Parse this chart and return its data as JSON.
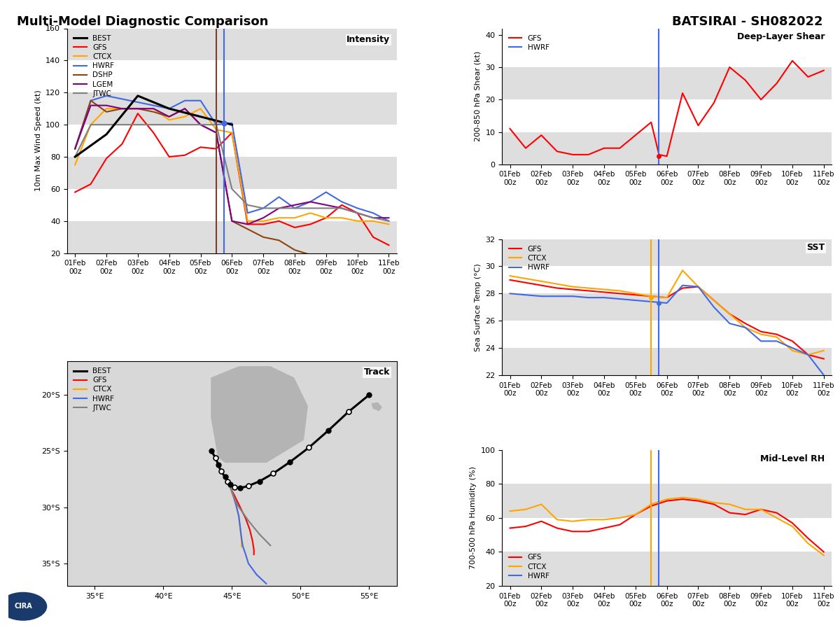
{
  "title_left": "Multi-Model Diagnostic Comparison",
  "title_right": "BATSIRAI - SH082022",
  "date_labels": [
    "01Feb\n00z",
    "02Feb\n00z",
    "03Feb\n00z",
    "04Feb\n00z",
    "05Feb\n00z",
    "06Feb\n00z",
    "07Feb\n00z",
    "08Feb\n00z",
    "09Feb\n00z",
    "10Feb\n00z",
    "11Feb\n00z"
  ],
  "intensity": {
    "ylabel": "10m Max Wind Speed (kt)",
    "ylim": [
      20,
      160
    ],
    "yticks": [
      20,
      40,
      60,
      80,
      100,
      120,
      140,
      160
    ],
    "vline_brown": 5.5,
    "vline_blue": 5.75,
    "BEST_x": [
      1,
      2,
      3,
      4,
      5,
      6
    ],
    "BEST_y": [
      80,
      94,
      118,
      110,
      105,
      100
    ],
    "GFS_x": [
      1.0,
      1.5,
      2.0,
      2.5,
      3.0,
      3.5,
      4.0,
      4.5,
      5.0,
      5.5,
      6.0,
      6.5,
      7.0,
      7.5,
      8.0,
      8.5,
      9.0,
      9.5,
      10.0,
      10.5,
      11.0
    ],
    "GFS_y": [
      58,
      63,
      79,
      88,
      107,
      95,
      80,
      81,
      86,
      85,
      95,
      38,
      38,
      40,
      36,
      38,
      42,
      50,
      45,
      30,
      25
    ],
    "CTCX_x": [
      1.0,
      1.5,
      2.0,
      2.5,
      3.0,
      3.5,
      4.0,
      4.5,
      5.0,
      5.5,
      6.0,
      6.5,
      7.0,
      7.5,
      8.0,
      8.5,
      9.0,
      9.5,
      10.0,
      10.5,
      11.0
    ],
    "CTCX_y": [
      75,
      100,
      110,
      110,
      110,
      110,
      103,
      105,
      110,
      97,
      95,
      40,
      40,
      42,
      42,
      45,
      42,
      42,
      40,
      40,
      38
    ],
    "HWRF_x": [
      1.0,
      1.5,
      2.0,
      2.5,
      3.0,
      3.5,
      4.0,
      4.5,
      5.0,
      5.5,
      6.0,
      6.5,
      7.0,
      7.5,
      8.0,
      8.5,
      9.0,
      9.5,
      10.0,
      10.5,
      11.0
    ],
    "HWRF_y": [
      85,
      115,
      118,
      116,
      114,
      112,
      110,
      115,
      115,
      100,
      101,
      45,
      48,
      55,
      48,
      52,
      58,
      52,
      48,
      45,
      40
    ],
    "DSHP_x": [
      1.0,
      1.5,
      2.0,
      2.5,
      3.0,
      3.5,
      4.0,
      4.5,
      5.0,
      5.5,
      6.0,
      6.5,
      7.0,
      7.5,
      8.0,
      8.5
    ],
    "DSHP_y": [
      85,
      115,
      108,
      110,
      110,
      108,
      105,
      110,
      100,
      95,
      40,
      35,
      30,
      28,
      22,
      19
    ],
    "LGEM_x": [
      1.0,
      1.5,
      2.0,
      2.5,
      3.0,
      3.5,
      4.0,
      4.5,
      5.0,
      5.5,
      6.0,
      6.5,
      7.0,
      7.5,
      8.0,
      8.5,
      9.0,
      9.5,
      10.0,
      10.5,
      11.0
    ],
    "LGEM_y": [
      85,
      112,
      112,
      110,
      110,
      110,
      105,
      110,
      100,
      95,
      40,
      38,
      42,
      48,
      50,
      52,
      50,
      48,
      45,
      42,
      42
    ],
    "JTWC_x": [
      1.0,
      1.5,
      2.0,
      2.5,
      3.0,
      3.5,
      4.0,
      4.5,
      5.0,
      5.5,
      6.0,
      6.5,
      7.0,
      7.5,
      8.0,
      8.5,
      9.0,
      9.5,
      10.0,
      10.5,
      11.0
    ],
    "JTWC_y": [
      80,
      100,
      100,
      100,
      100,
      100,
      100,
      100,
      100,
      100,
      60,
      50,
      48,
      48,
      48,
      48,
      48,
      48,
      45,
      42,
      40
    ]
  },
  "shear": {
    "ylabel": "200-850 hPa Shear (kt)",
    "ylim": [
      0,
      42
    ],
    "yticks": [
      0,
      10,
      20,
      30,
      40
    ],
    "vline_blue": 5.75,
    "GFS_x": [
      1.0,
      1.5,
      2.0,
      2.5,
      3.0,
      3.5,
      4.0,
      4.5,
      5.0,
      5.5,
      5.75,
      6.0,
      6.5,
      7.0,
      7.5,
      8.0,
      8.5,
      9.0,
      9.5,
      10.0,
      10.5,
      11.0
    ],
    "GFS_y": [
      11,
      5,
      9,
      4,
      3,
      3,
      5,
      5,
      9,
      13,
      3,
      2.5,
      22,
      12,
      19,
      30,
      26,
      20,
      25,
      32,
      27,
      29
    ]
  },
  "sst": {
    "ylabel": "Sea Surface Temp (°C)",
    "ylim": [
      22,
      32
    ],
    "yticks": [
      22,
      24,
      26,
      28,
      30,
      32
    ],
    "vline_ctcx": 5.5,
    "vline_hwrf": 5.75,
    "GFS_x": [
      1.0,
      1.5,
      2.0,
      2.5,
      3.0,
      3.5,
      4.0,
      4.5,
      5.0,
      5.5,
      6.0,
      6.5,
      7.0,
      7.5,
      8.0,
      8.5,
      9.0,
      9.5,
      10.0,
      10.5,
      11.0
    ],
    "GFS_y": [
      29.0,
      28.8,
      28.6,
      28.4,
      28.3,
      28.2,
      28.1,
      28.0,
      27.9,
      27.8,
      27.7,
      28.4,
      28.5,
      27.5,
      26.5,
      25.8,
      25.2,
      25.0,
      24.5,
      23.5,
      23.2
    ],
    "CTCX_x": [
      1.0,
      1.5,
      2.0,
      2.5,
      3.0,
      3.5,
      4.0,
      4.5,
      5.0,
      5.5,
      6.0,
      6.5,
      7.0,
      7.5,
      8.0,
      8.5,
      9.0,
      9.5,
      10.0,
      10.5,
      11.0
    ],
    "CTCX_y": [
      29.3,
      29.1,
      28.9,
      28.7,
      28.5,
      28.4,
      28.3,
      28.2,
      28.0,
      27.8,
      27.7,
      29.7,
      28.5,
      27.5,
      26.5,
      25.5,
      25.0,
      24.8,
      23.8,
      23.5,
      23.8
    ],
    "HWRF_x": [
      1.0,
      1.5,
      2.0,
      2.5,
      3.0,
      3.5,
      4.0,
      4.5,
      5.0,
      5.5,
      6.0,
      6.5,
      7.0,
      7.5,
      8.0,
      8.5,
      9.0,
      9.5,
      10.0,
      10.5,
      11.0
    ],
    "HWRF_y": [
      28.0,
      27.9,
      27.8,
      27.8,
      27.8,
      27.7,
      27.7,
      27.6,
      27.5,
      27.4,
      27.3,
      28.6,
      28.5,
      27.0,
      25.8,
      25.5,
      24.5,
      24.5,
      24.0,
      23.5,
      22.0
    ]
  },
  "rh": {
    "ylabel": "700-500 hPa Humidity (%)",
    "ylim": [
      20,
      100
    ],
    "yticks": [
      20,
      40,
      60,
      80,
      100
    ],
    "vline_ctcx": 5.5,
    "vline_hwrf": 5.75,
    "GFS_x": [
      1.0,
      1.5,
      2.0,
      2.5,
      3.0,
      3.5,
      4.0,
      4.5,
      5.0,
      5.5,
      6.0,
      6.5,
      7.0,
      7.5,
      8.0,
      8.5,
      9.0,
      9.5,
      10.0,
      10.5,
      11.0
    ],
    "GFS_y": [
      54,
      55,
      58,
      54,
      52,
      52,
      54,
      56,
      62,
      67,
      70,
      71,
      70,
      68,
      63,
      62,
      65,
      63,
      57,
      48,
      40
    ],
    "CTCX_x": [
      1.0,
      1.5,
      2.0,
      2.5,
      3.0,
      3.5,
      4.0,
      4.5,
      5.0,
      5.5,
      6.0,
      6.5,
      7.0,
      7.5,
      8.0,
      8.5,
      9.0,
      9.5,
      10.0,
      10.5,
      11.0
    ],
    "CTCX_y": [
      64,
      65,
      68,
      59,
      58,
      59,
      59,
      60,
      62,
      68,
      71,
      72,
      71,
      69,
      68,
      65,
      65,
      60,
      55,
      45,
      38
    ]
  },
  "track": {
    "xlim": [
      33,
      57
    ],
    "ylim": [
      -37,
      -17
    ],
    "xticks": [
      35,
      40,
      45,
      50,
      55
    ],
    "yticks": [
      -20,
      -25,
      -30,
      -35
    ],
    "ytick_labels": [
      "20°S",
      "25°S",
      "30°S",
      "35°S"
    ],
    "BEST_lon": [
      43.5,
      43.8,
      44.0,
      44.2,
      44.5,
      44.7,
      44.9,
      45.2,
      45.6,
      46.2,
      47.0,
      48.0,
      49.2,
      50.6,
      52.0,
      53.5,
      55.0
    ],
    "BEST_lat": [
      -25.0,
      -25.6,
      -26.2,
      -26.8,
      -27.3,
      -27.7,
      -28.0,
      -28.2,
      -28.3,
      -28.1,
      -27.7,
      -27.0,
      -26.0,
      -24.7,
      -23.2,
      -21.5,
      -20.0
    ],
    "GFS_lon": [
      43.5,
      43.8,
      44.0,
      44.2,
      44.5,
      44.7,
      44.9,
      45.2,
      45.6,
      46.0,
      46.3,
      46.5,
      46.6,
      46.6
    ],
    "GFS_lat": [
      -25.0,
      -25.6,
      -26.2,
      -26.8,
      -27.3,
      -27.7,
      -28.3,
      -29.0,
      -30.0,
      -31.0,
      -32.0,
      -33.0,
      -33.8,
      -34.2
    ],
    "CTCX_lon": [
      43.5,
      43.8,
      44.0,
      44.2,
      44.5,
      44.7,
      44.9,
      45.1,
      45.3,
      45.5,
      45.6,
      45.7,
      45.7
    ],
    "CTCX_lat": [
      -25.0,
      -25.6,
      -26.2,
      -26.8,
      -27.3,
      -27.7,
      -28.3,
      -29.0,
      -29.8,
      -30.8,
      -31.8,
      -32.8,
      -33.5
    ],
    "HWRF_lon": [
      43.5,
      43.8,
      44.0,
      44.2,
      44.5,
      44.7,
      44.9,
      45.1,
      45.3,
      45.5,
      45.6,
      45.7,
      45.8,
      46.0,
      46.2,
      46.8,
      47.5
    ],
    "HWRF_lat": [
      -25.0,
      -25.6,
      -26.2,
      -26.8,
      -27.3,
      -27.7,
      -28.3,
      -29.0,
      -29.8,
      -30.8,
      -31.8,
      -32.8,
      -33.5,
      -34.2,
      -35.0,
      -36.0,
      -36.8
    ],
    "JTWC_lon": [
      43.5,
      43.8,
      44.0,
      44.2,
      44.5,
      44.7,
      44.9,
      45.1,
      45.4,
      45.8,
      46.2,
      46.6,
      47.0,
      47.4,
      47.8
    ],
    "JTWC_lat": [
      -25.0,
      -25.6,
      -26.2,
      -26.8,
      -27.3,
      -27.7,
      -28.3,
      -29.0,
      -29.8,
      -30.5,
      -31.2,
      -31.8,
      -32.4,
      -32.9,
      -33.4
    ],
    "BEST_filled_idx": [
      0,
      2,
      4,
      6,
      8,
      10,
      12,
      14,
      16
    ],
    "BEST_open_idx": [
      1,
      3,
      5,
      7,
      9,
      11,
      13,
      15
    ],
    "madagascar_lon": [
      44.0,
      44.5,
      47.5,
      50.2,
      50.5,
      49.5,
      47.8,
      45.5,
      43.5,
      43.5,
      44.0
    ],
    "madagascar_lat": [
      -25.5,
      -26.0,
      -26.0,
      -24.0,
      -21.0,
      -18.5,
      -17.5,
      -17.5,
      -18.5,
      -22.0,
      -25.5
    ],
    "reunion_lon": [
      55.2,
      55.6,
      55.9,
      55.7,
      55.3,
      55.2
    ],
    "reunion_lat": [
      -20.8,
      -20.7,
      -21.1,
      -21.4,
      -21.2,
      -20.8
    ]
  },
  "colors": {
    "BEST": "#000000",
    "GFS": "#ff0000",
    "CTCX": "#ffa500",
    "HWRF": "#4169e1",
    "DSHP": "#8b4513",
    "LGEM": "#800080",
    "JTWC": "#808080",
    "bg_stripe": "#c8c8c8",
    "track_bg": "#d8d8d8",
    "land": "#b4b4b4"
  }
}
